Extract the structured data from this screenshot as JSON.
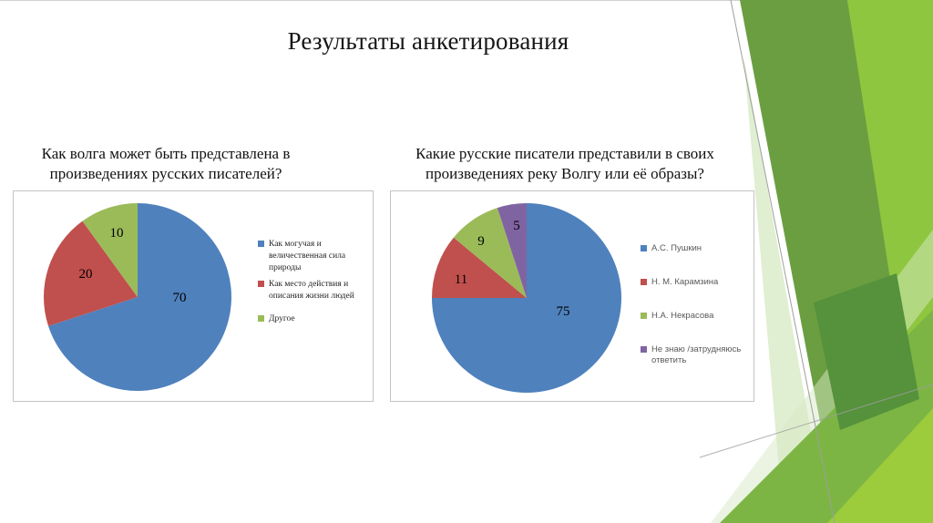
{
  "slide_title": "Результаты анкетирования",
  "decoration": {
    "dark_green": "#6B9E41",
    "bright_green": "#8FC63F",
    "medium_green": "#7CB544",
    "lime_green": "#9CCB3B",
    "deep_green": "#55923B",
    "pale_green": "#D8EAC6",
    "line_gray": "#9E9E9E"
  },
  "chart_data": [
    {
      "type": "pie",
      "title": "Как волга может быть представлена в произведениях русских писателей?",
      "title_lines": [
        "Как волга может быть представлена в",
        "произведениях русских писателей?"
      ],
      "labels": [
        "Как могучая и величественная сила природы",
        "Как место действия и описания жизни людей",
        "Другое"
      ],
      "values": [
        70,
        20,
        10
      ],
      "colors": [
        "#4F81BD",
        "#C0504D",
        "#9BBB59"
      ],
      "legend_position": "right",
      "start_angle": "12 o'clock",
      "direction": "clockwise"
    },
    {
      "type": "pie",
      "title": "Какие русские писатели представили в своих произведениях реку Волгу или её образы?",
      "title_lines": [
        "Какие русские писатели представили в своих",
        "произведениях реку Волгу или её образы?"
      ],
      "labels": [
        "А.С. Пушкин",
        "Н. М. Карамзина",
        "Н.А. Некрасова",
        "Не знаю /затрудняюсь ответить"
      ],
      "values": [
        75,
        11,
        9,
        5
      ],
      "colors": [
        "#4F81BD",
        "#C0504D",
        "#9BBB59",
        "#8064A2"
      ],
      "legend_position": "right",
      "start_angle": "12 o'clock",
      "direction": "clockwise"
    }
  ]
}
